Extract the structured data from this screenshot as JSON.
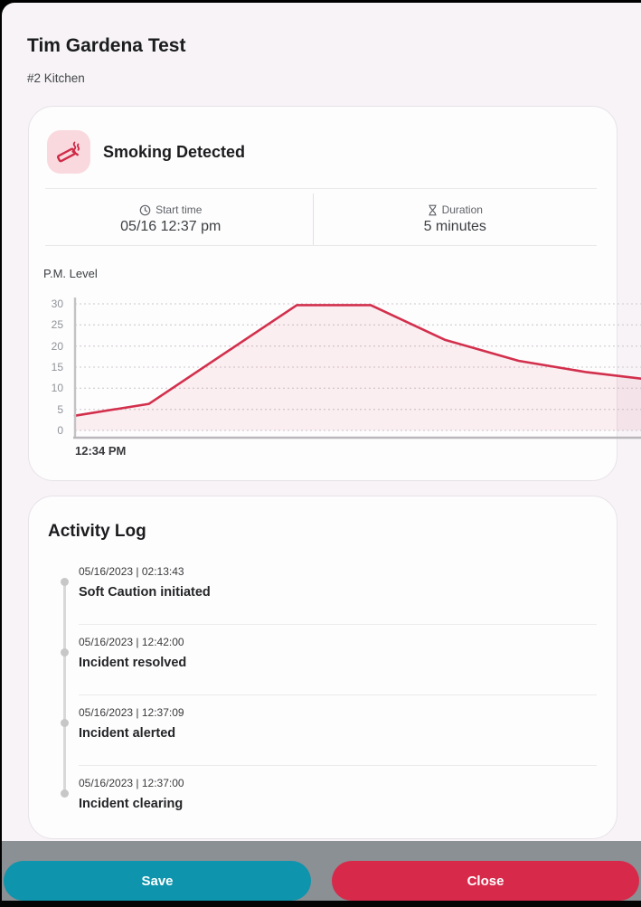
{
  "window": {
    "title": "Tim Gardena Test",
    "subtitle": "#2 Kitchen"
  },
  "incident": {
    "title": "Smoking Detected",
    "start_time_label": "Start time",
    "start_time_value": "05/16 12:37 pm",
    "duration_label": "Duration",
    "duration_value": "5 minutes"
  },
  "chart_data": {
    "type": "area",
    "title": "P.M. Level",
    "x_start_label": "12:34 PM",
    "yticks": [
      0,
      5,
      10,
      15,
      20,
      25,
      30
    ],
    "ylim": [
      0,
      30
    ],
    "grid": true,
    "legend": "none",
    "points": [
      {
        "x": 0.0,
        "y": 3.5
      },
      {
        "x": 0.13,
        "y": 6.3
      },
      {
        "x": 0.39,
        "y": 29.7
      },
      {
        "x": 0.52,
        "y": 29.7
      },
      {
        "x": 0.65,
        "y": 21.5
      },
      {
        "x": 0.78,
        "y": 16.5
      },
      {
        "x": 0.9,
        "y": 13.8
      },
      {
        "x": 1.0,
        "y": 12.2
      }
    ],
    "line_color": "#d2304c",
    "fill_color": "rgba(210,48,76,0.07)"
  },
  "activity_log": {
    "title": "Activity Log",
    "entries": [
      {
        "timestamp": "05/16/2023 | 02:13:43",
        "label": "Soft Caution initiated"
      },
      {
        "timestamp": "05/16/2023 | 12:42:00",
        "label": "Incident resolved"
      },
      {
        "timestamp": "05/16/2023 | 12:37:09",
        "label": "Incident alerted"
      },
      {
        "timestamp": "05/16/2023 | 12:37:00",
        "label": "Incident clearing"
      }
    ]
  },
  "footer": {
    "save_label": "Save",
    "close_label": "Close",
    "save_color": "#0e94ac",
    "close_color": "#d7294a"
  },
  "colors": {
    "accent": "#d2304c",
    "icon_bg": "#f9d9de",
    "page_bg": "#f7f3f7",
    "footer_bg": "#8b9095"
  }
}
